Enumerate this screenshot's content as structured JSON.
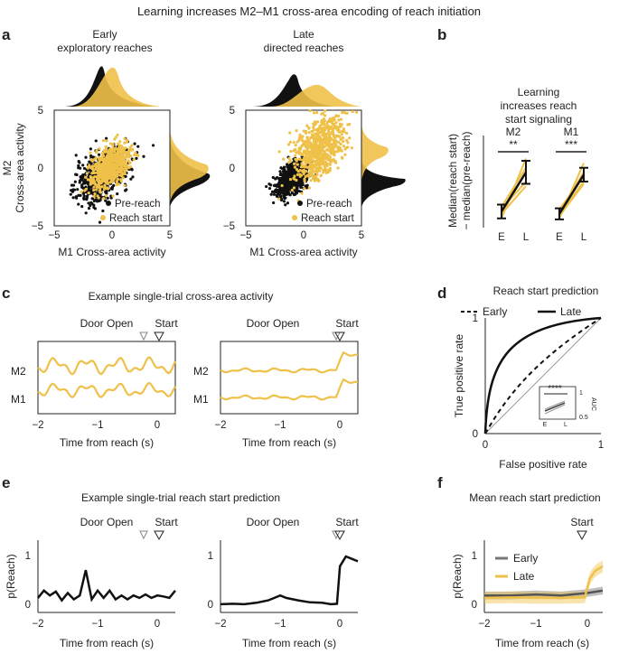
{
  "figure_title": "Learning increases M2–M1 cross-area encoding of reach initiation",
  "colors": {
    "black": "#111111",
    "yellow": "#efc149",
    "yellow_dark": "#d9a520",
    "gray": "#8a8a8a"
  },
  "panel_labels": {
    "a": "a",
    "b": "b",
    "c": "c",
    "d": "d",
    "e": "e",
    "f": "f"
  },
  "chart_data": [
    {
      "id": "a-early",
      "type": "scatter",
      "title_line1": "Early",
      "title_line2": "exploratory reaches",
      "xlabel": "M1 Cross-area activity",
      "ylabel_line1": "M2",
      "ylabel_line2": "Cross-area activity",
      "xlim": [
        -5,
        5
      ],
      "ylim": [
        -5,
        5
      ],
      "xticks": [
        "−5",
        "0",
        "5"
      ],
      "yticks": [
        "−5",
        "0",
        "5"
      ],
      "legend": [
        "Pre-reach",
        "Reach start"
      ],
      "series": [
        {
          "name": "Pre-reach",
          "center": [
            -0.8,
            -0.6
          ],
          "spread": [
            1.6,
            1.4
          ],
          "n": 700
        },
        {
          "name": "Reach start",
          "center": [
            -0.2,
            0.1
          ],
          "spread": [
            1.2,
            1.2
          ],
          "n": 650
        }
      ]
    },
    {
      "id": "a-late",
      "type": "scatter",
      "title_line1": "Late",
      "title_line2": "directed reaches",
      "xlabel": "M1 Cross-area activity",
      "xlim": [
        -5,
        5
      ],
      "ylim": [
        -5,
        5
      ],
      "xticks": [
        "−5",
        "0",
        "5"
      ],
      "yticks": [
        "−5",
        "0",
        "5"
      ],
      "legend": [
        "Pre-reach",
        "Reach start"
      ],
      "series": [
        {
          "name": "Pre-reach",
          "center": [
            -1.0,
            -1.0
          ],
          "spread": [
            1.0,
            0.9
          ],
          "n": 700
        },
        {
          "name": "Reach start",
          "center": [
            1.2,
            1.5
          ],
          "spread": [
            1.6,
            1.9
          ],
          "n": 650
        }
      ]
    },
    {
      "id": "b",
      "type": "line",
      "title_lines": [
        "Learning",
        "increases reach",
        "start signaling"
      ],
      "ylabel_line1": "Median(reach start)",
      "ylabel_line2": "− median(pre-reach)",
      "groups": [
        {
          "name": "M2",
          "stars": "**",
          "x_labels": [
            "E",
            "L"
          ],
          "mean": [
            0.35,
            1.2
          ],
          "err": [
            0.15,
            0.25
          ],
          "lines": [
            [
              0.2,
              1.5
            ],
            [
              0.3,
              1.2
            ],
            [
              0.45,
              1.3
            ],
            [
              0.4,
              1.0
            ],
            [
              0.3,
              0.9
            ]
          ]
        },
        {
          "name": "M1",
          "stars": "***",
          "x_labels": [
            "E",
            "L"
          ],
          "mean": [
            0.3,
            1.15
          ],
          "err": [
            0.12,
            0.15
          ],
          "lines": [
            [
              0.2,
              1.4
            ],
            [
              0.35,
              1.2
            ],
            [
              0.4,
              1.1
            ],
            [
              0.3,
              1.0
            ],
            [
              0.25,
              0.95
            ]
          ]
        }
      ],
      "ylim": [
        0,
        2
      ]
    },
    {
      "id": "c",
      "type": "line",
      "title": "Example single-trial cross-area activity",
      "xlabel": "Time from reach (s)",
      "xticks": [
        "−2",
        "−1",
        "0"
      ],
      "xlim": [
        -2,
        0.3
      ],
      "row_labels": [
        "M2",
        "M1"
      ],
      "event_labels": [
        "Door Open",
        "Start"
      ],
      "door_open_times": [
        -0.3,
        -0.1
      ]
    },
    {
      "id": "d",
      "type": "line",
      "title": "Reach start prediction",
      "xlabel": "False positive rate",
      "ylabel": "True positive rate",
      "xticks": [
        "0",
        "1"
      ],
      "yticks": [
        "0",
        "1"
      ],
      "legend": [
        "Early",
        "Late"
      ],
      "inset": {
        "stars": "****",
        "ylabel": "AUC",
        "yticks": [
          "1",
          "0.5"
        ],
        "xticks": [
          "E",
          "L"
        ]
      }
    },
    {
      "id": "e",
      "type": "line",
      "title": "Example single-trial reach start prediction",
      "xlabel": "Time from reach (s)",
      "ylabel": "p(Reach)",
      "xticks": [
        "−2",
        "−1",
        "0"
      ],
      "yticks": [
        "0",
        "1"
      ],
      "event_labels": [
        "Door Open",
        "Start"
      ],
      "series_left": [
        [
          -2,
          0.15
        ],
        [
          -1.9,
          0.3
        ],
        [
          -1.8,
          0.2
        ],
        [
          -1.7,
          0.28
        ],
        [
          -1.6,
          0.1
        ],
        [
          -1.5,
          0.25
        ],
        [
          -1.4,
          0.12
        ],
        [
          -1.3,
          0.2
        ],
        [
          -1.2,
          0.72
        ],
        [
          -1.1,
          0.12
        ],
        [
          -1.0,
          0.3
        ],
        [
          -0.9,
          0.15
        ],
        [
          -0.8,
          0.3
        ],
        [
          -0.7,
          0.12
        ],
        [
          -0.6,
          0.2
        ],
        [
          -0.5,
          0.12
        ],
        [
          -0.4,
          0.2
        ],
        [
          -0.3,
          0.15
        ],
        [
          -0.2,
          0.22
        ],
        [
          -0.1,
          0.15
        ],
        [
          0.0,
          0.2
        ],
        [
          0.1,
          0.18
        ],
        [
          0.2,
          0.15
        ],
        [
          0.3,
          0.3
        ]
      ],
      "series_right": [
        [
          -2,
          0.02
        ],
        [
          -1.8,
          0.03
        ],
        [
          -1.6,
          0.02
        ],
        [
          -1.4,
          0.05
        ],
        [
          -1.2,
          0.1
        ],
        [
          -1.0,
          0.2
        ],
        [
          -0.9,
          0.15
        ],
        [
          -0.7,
          0.1
        ],
        [
          -0.5,
          0.06
        ],
        [
          -0.3,
          0.05
        ],
        [
          -0.15,
          0.02
        ],
        [
          -0.05,
          0.03
        ],
        [
          0.0,
          0.8
        ],
        [
          0.1,
          1.0
        ],
        [
          0.2,
          0.95
        ],
        [
          0.3,
          0.9
        ]
      ]
    },
    {
      "id": "f",
      "type": "area",
      "title": "Mean reach start prediction",
      "xlabel": "Time from reach (s)",
      "ylabel": "p(Reach)",
      "xticks": [
        "−2",
        "−1",
        "0"
      ],
      "yticks": [
        "0",
        "1"
      ],
      "event_labels": [
        "Start"
      ],
      "legend": [
        "Early",
        "Late"
      ],
      "series": [
        {
          "name": "Early",
          "x": [
            -2,
            -1.5,
            -1,
            -0.5,
            0,
            0.3
          ],
          "y": [
            0.2,
            0.2,
            0.22,
            0.2,
            0.25,
            0.3
          ]
        },
        {
          "name": "Late",
          "x": [
            -2,
            -1.5,
            -1,
            -0.5,
            -0.05,
            0.05,
            0.15,
            0.3
          ],
          "y": [
            0.15,
            0.16,
            0.15,
            0.15,
            0.16,
            0.55,
            0.7,
            0.8
          ]
        }
      ]
    }
  ]
}
